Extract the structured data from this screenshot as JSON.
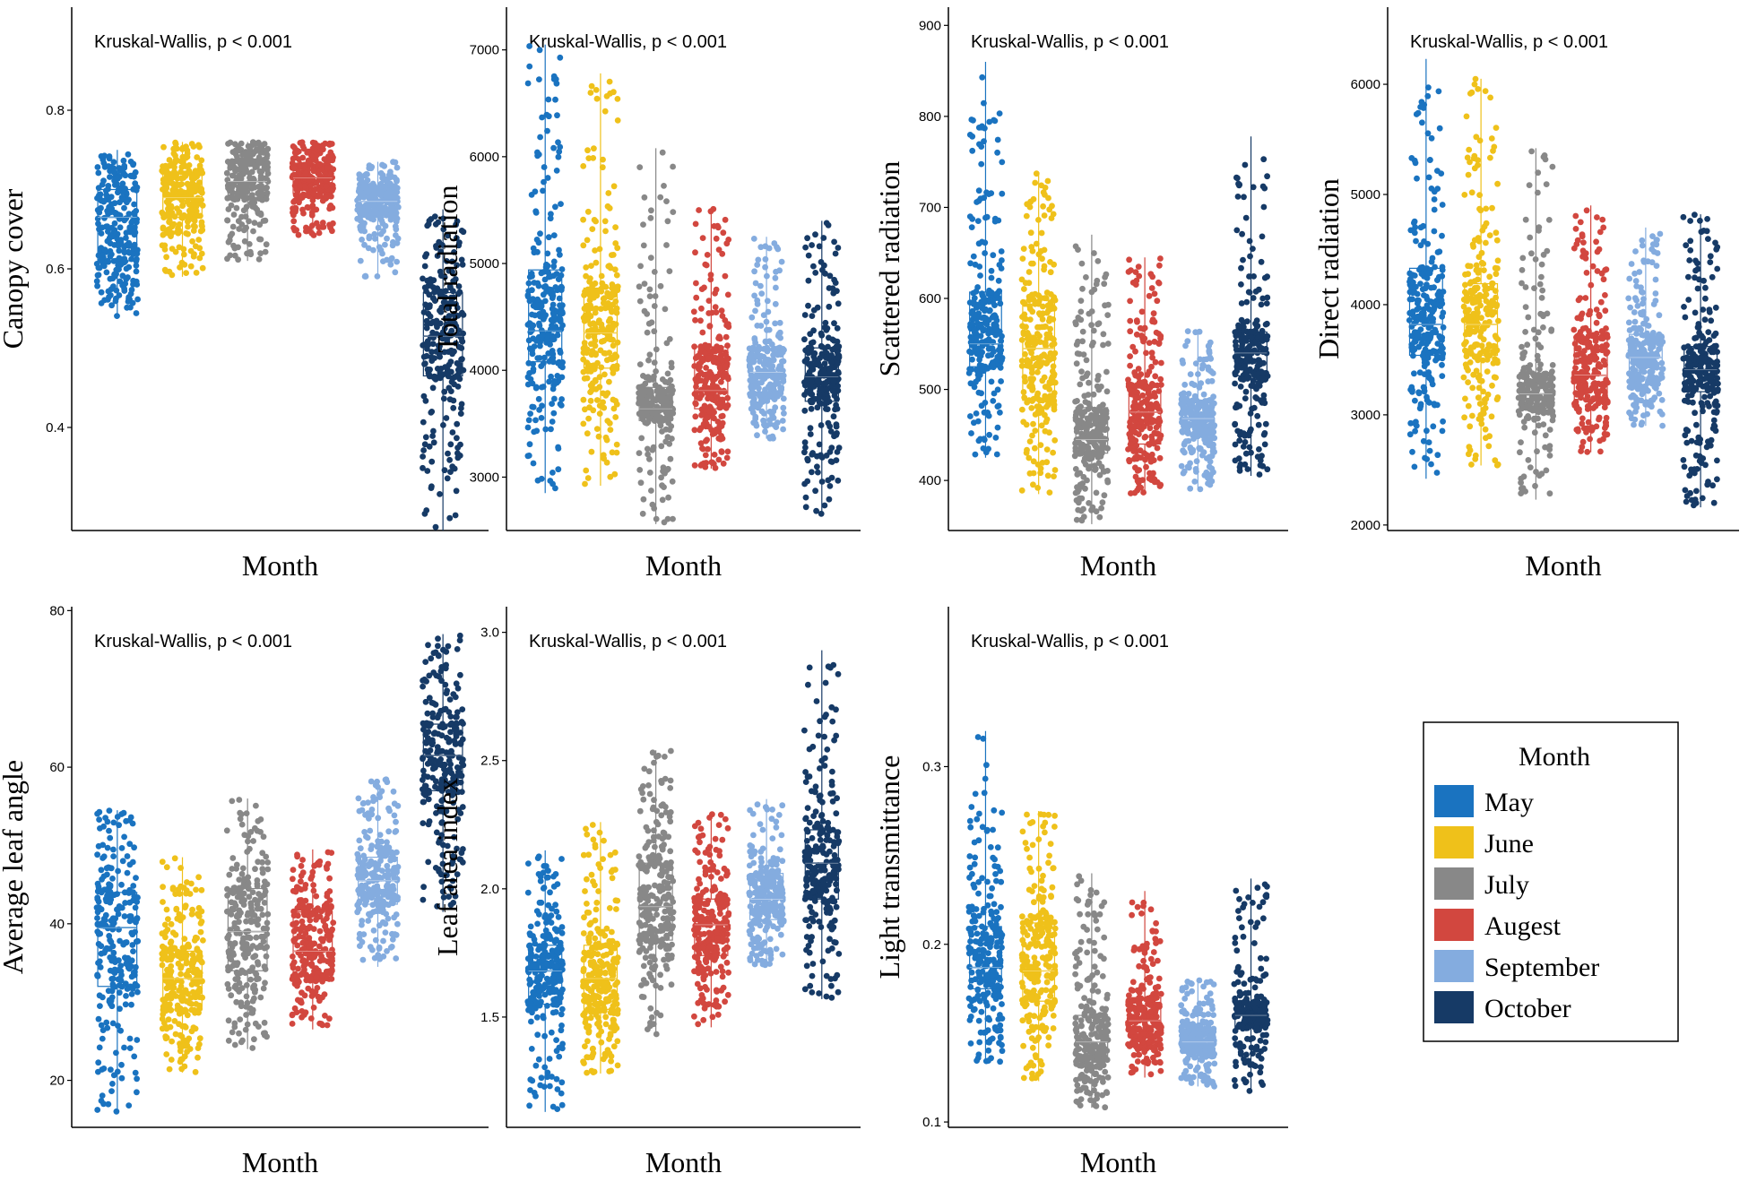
{
  "chart_data": [
    {
      "type": "box-jitter",
      "title": "Kruskal-Wallis, p < 0.001",
      "xlabel": "Month",
      "ylabel": "Canopy cover",
      "ylim": [
        0.27,
        0.93
      ],
      "yticks": [
        0.4,
        0.6,
        0.8
      ],
      "ytick_labels": [
        "0.4",
        "0.6",
        "0.8"
      ],
      "categories": [
        "May",
        "June",
        "July",
        "Augest",
        "September",
        "October"
      ],
      "boxes": [
        {
          "min": 0.54,
          "q1": 0.61,
          "median": 0.665,
          "q3": 0.7,
          "max": 0.75
        },
        {
          "min": 0.59,
          "q1": 0.665,
          "median": 0.69,
          "q3": 0.72,
          "max": 0.76
        },
        {
          "min": 0.61,
          "q1": 0.69,
          "median": 0.71,
          "q3": 0.735,
          "max": 0.76
        },
        {
          "min": 0.64,
          "q1": 0.695,
          "median": 0.715,
          "q3": 0.73,
          "max": 0.76
        },
        {
          "min": 0.59,
          "q1": 0.665,
          "median": 0.685,
          "q3": 0.7,
          "max": 0.735
        },
        {
          "min": 0.27,
          "q1": 0.465,
          "median": 0.515,
          "q3": 0.57,
          "max": 0.675
        }
      ]
    },
    {
      "type": "box-jitter",
      "title": "Kruskal-Wallis, p < 0.001",
      "xlabel": "Month",
      "ylabel": "Total radiation",
      "ylim": [
        2500,
        7400
      ],
      "yticks": [
        3000,
        4000,
        5000,
        6000,
        7000
      ],
      "ytick_labels": [
        "3000",
        "4000",
        "5000",
        "6000",
        "7000"
      ],
      "categories": [
        "May",
        "June",
        "July",
        "Augest",
        "September",
        "October"
      ],
      "boxes": [
        {
          "min": 2850,
          "q1": 4080,
          "median": 4370,
          "q3": 4940,
          "max": 7050
        },
        {
          "min": 2920,
          "q1": 4020,
          "median": 4350,
          "q3": 4770,
          "max": 6780
        },
        {
          "min": 2560,
          "q1": 3530,
          "median": 3640,
          "q3": 3840,
          "max": 6080
        },
        {
          "min": 3080,
          "q1": 3640,
          "median": 3810,
          "q3": 4220,
          "max": 5520
        },
        {
          "min": 3360,
          "q1": 3780,
          "median": 3980,
          "q3": 4200,
          "max": 5250
        },
        {
          "min": 2640,
          "q1": 3710,
          "median": 3940,
          "q3": 4210,
          "max": 5400
        }
      ]
    },
    {
      "type": "box-jitter",
      "title": "Kruskal-Wallis, p < 0.001",
      "xlabel": "Month",
      "ylabel": "Scattered radiation",
      "ylim": [
        345,
        920
      ],
      "yticks": [
        400,
        500,
        600,
        700,
        800,
        900
      ],
      "ytick_labels": [
        "400",
        "500",
        "600",
        "700",
        "800",
        "900"
      ],
      "categories": [
        "May",
        "June",
        "July",
        "Augest",
        "September",
        "October"
      ],
      "boxes": [
        {
          "min": 425,
          "q1": 525,
          "median": 550,
          "q3": 607,
          "max": 860
        },
        {
          "min": 385,
          "q1": 488,
          "median": 545,
          "q3": 598,
          "max": 738
        },
        {
          "min": 352,
          "q1": 430,
          "median": 445,
          "q3": 480,
          "max": 670
        },
        {
          "min": 385,
          "q1": 440,
          "median": 475,
          "q3": 505,
          "max": 645
        },
        {
          "min": 390,
          "q1": 452,
          "median": 468,
          "q3": 488,
          "max": 565
        },
        {
          "min": 405,
          "q1": 515,
          "median": 540,
          "q3": 563,
          "max": 778
        }
      ]
    },
    {
      "type": "box-jitter",
      "title": "Kruskal-Wallis, p < 0.001",
      "xlabel": "Month",
      "ylabel": "Direct radiation",
      "ylim": [
        1950,
        6700
      ],
      "yticks": [
        2000,
        3000,
        4000,
        5000,
        6000
      ],
      "ytick_labels": [
        "2000",
        "3000",
        "4000",
        "5000",
        "6000"
      ],
      "categories": [
        "May",
        "June",
        "July",
        "Augest",
        "September",
        "October"
      ],
      "boxes": [
        {
          "min": 2420,
          "q1": 3540,
          "median": 3820,
          "q3": 4330,
          "max": 6230
        },
        {
          "min": 2540,
          "q1": 3540,
          "median": 3820,
          "q3": 4190,
          "max": 6050
        },
        {
          "min": 2230,
          "q1": 3060,
          "median": 3190,
          "q3": 3380,
          "max": 5420
        },
        {
          "min": 2660,
          "q1": 3140,
          "median": 3360,
          "q3": 3710,
          "max": 4900
        },
        {
          "min": 2900,
          "q1": 3340,
          "median": 3520,
          "q3": 3730,
          "max": 4700
        },
        {
          "min": 2160,
          "q1": 3210,
          "median": 3410,
          "q3": 3620,
          "max": 4820
        }
      ]
    },
    {
      "type": "box-jitter",
      "title": "Kruskal-Wallis, p < 0.001",
      "xlabel": "Month",
      "ylabel": "Average leaf angle",
      "ylim": [
        14,
        80.5
      ],
      "yticks": [
        20,
        40,
        60,
        80
      ],
      "ytick_labels": [
        "20",
        "40",
        "60",
        "80"
      ],
      "categories": [
        "May",
        "June",
        "July",
        "Augest",
        "September",
        "October"
      ],
      "boxes": [
        {
          "min": 16,
          "q1": 32,
          "median": 39.5,
          "q3": 44,
          "max": 54.5
        },
        {
          "min": 21,
          "q1": 29,
          "median": 33,
          "q3": 36.5,
          "max": 48.5
        },
        {
          "min": 24,
          "q1": 34,
          "median": 39,
          "q3": 44.5,
          "max": 56
        },
        {
          "min": 26.5,
          "q1": 33.5,
          "median": 36.5,
          "q3": 41.5,
          "max": 49.5
        },
        {
          "min": 34.5,
          "q1": 42.5,
          "median": 45.5,
          "q3": 48.5,
          "max": 58.5
        },
        {
          "min": 41.5,
          "q1": 57,
          "median": 61.5,
          "q3": 65.5,
          "max": 77
        }
      ]
    },
    {
      "type": "box-jitter",
      "title": "Kruskal-Wallis, p < 0.001",
      "xlabel": "Month",
      "ylabel": "Leaf area index",
      "ylim": [
        1.07,
        3.1
      ],
      "yticks": [
        1.5,
        2.0,
        2.5,
        3.0
      ],
      "ytick_labels": [
        "1.5",
        "2.0",
        "2.5",
        "3.0"
      ],
      "categories": [
        "May",
        "June",
        "July",
        "Augest",
        "September",
        "October"
      ],
      "boxes": [
        {
          "min": 1.13,
          "q1": 1.55,
          "median": 1.68,
          "q3": 1.78,
          "max": 2.15
        },
        {
          "min": 1.28,
          "q1": 1.53,
          "median": 1.65,
          "q3": 1.78,
          "max": 2.26
        },
        {
          "min": 1.43,
          "q1": 1.8,
          "median": 1.93,
          "q3": 2.1,
          "max": 2.54
        },
        {
          "min": 1.46,
          "q1": 1.74,
          "median": 1.86,
          "q3": 1.96,
          "max": 2.3
        },
        {
          "min": 1.7,
          "q1": 1.88,
          "median": 1.96,
          "q3": 2.06,
          "max": 2.35
        },
        {
          "min": 1.57,
          "q1": 1.96,
          "median": 2.1,
          "q3": 2.23,
          "max": 2.93
        }
      ]
    },
    {
      "type": "box-jitter",
      "title": "Kruskal-Wallis, p < 0.001",
      "xlabel": "Month",
      "ylabel": "Light transmittance",
      "ylim": [
        0.097,
        0.39
      ],
      "yticks": [
        0.1,
        0.2,
        0.3
      ],
      "ytick_labels": [
        "0.1",
        "0.2",
        "0.3"
      ],
      "categories": [
        "May",
        "June",
        "July",
        "Augest",
        "September",
        "October"
      ],
      "boxes": [
        {
          "min": 0.133,
          "q1": 0.175,
          "median": 0.187,
          "q3": 0.21,
          "max": 0.32
        },
        {
          "min": 0.123,
          "q1": 0.168,
          "median": 0.185,
          "q3": 0.212,
          "max": 0.275
        },
        {
          "min": 0.108,
          "q1": 0.135,
          "median": 0.145,
          "q3": 0.16,
          "max": 0.24
        },
        {
          "min": 0.125,
          "q1": 0.148,
          "median": 0.157,
          "q3": 0.17,
          "max": 0.23
        },
        {
          "min": 0.12,
          "q1": 0.14,
          "median": 0.145,
          "q3": 0.152,
          "max": 0.18
        },
        {
          "min": 0.117,
          "q1": 0.153,
          "median": 0.16,
          "q3": 0.167,
          "max": 0.237
        }
      ]
    }
  ],
  "legend": {
    "title": "Month",
    "items": [
      {
        "label": "May",
        "color": "#1a73c0"
      },
      {
        "label": "June",
        "color": "#efc11a"
      },
      {
        "label": "July",
        "color": "#888888"
      },
      {
        "label": "Augest",
        "color": "#d2473f"
      },
      {
        "label": "September",
        "color": "#84acdf"
      },
      {
        "label": "October",
        "color": "#163a66"
      }
    ]
  }
}
